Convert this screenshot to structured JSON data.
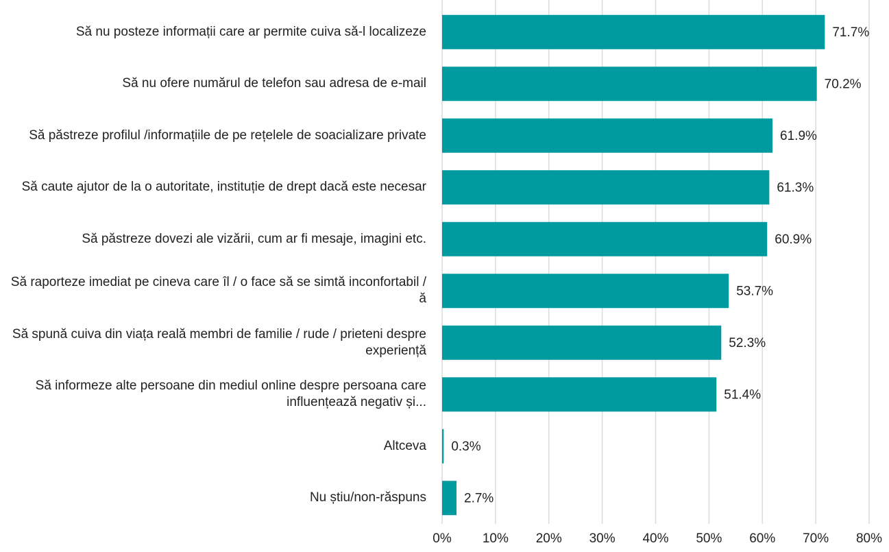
{
  "chart_data": {
    "type": "bar",
    "orientation": "horizontal",
    "categories": [
      "Să nu posteze informații care ar permite cuiva să-l localizeze",
      "Să nu ofere numărul de telefon sau adresa de e-mail",
      "Să păstreze profilul /informațiile de pe rețelele de soacializare private",
      "Să caute ajutor de la o autoritate, instituție de drept dacă este necesar",
      "Să păstreze dovezi ale vizării, cum ar fi mesaje, imagini etc.",
      "Să raporteze imediat pe cineva care îl / o face să se simtă inconfortabil /ă",
      "Să spună cuiva din viața reală membri de familie / rude / prieteni despre experiență",
      "Să informeze alte persoane din mediul online despre persoana care influențează negativ și...",
      "Altceva",
      "Nu știu/non-răspuns"
    ],
    "values": [
      71.7,
      70.2,
      61.9,
      61.3,
      60.9,
      53.7,
      52.3,
      51.4,
      0.3,
      2.7
    ],
    "value_labels": [
      "71.7%",
      "70.2%",
      "61.9%",
      "61.3%",
      "60.9%",
      "53.7%",
      "52.3%",
      "51.4%",
      "0.3%",
      "2.7%"
    ],
    "color": "#009b9e",
    "xlim": [
      0,
      80
    ],
    "xticks": [
      {
        "value": 0,
        "label": "0%"
      },
      {
        "value": 10,
        "label": "10%"
      },
      {
        "value": 20,
        "label": "20%"
      },
      {
        "value": 30,
        "label": "30%"
      },
      {
        "value": 40,
        "label": "40%"
      },
      {
        "value": 50,
        "label": "50%"
      },
      {
        "value": 60,
        "label": "60%"
      },
      {
        "value": 70,
        "label": "70%"
      },
      {
        "value": 80,
        "label": "80%"
      }
    ],
    "grid": true
  }
}
